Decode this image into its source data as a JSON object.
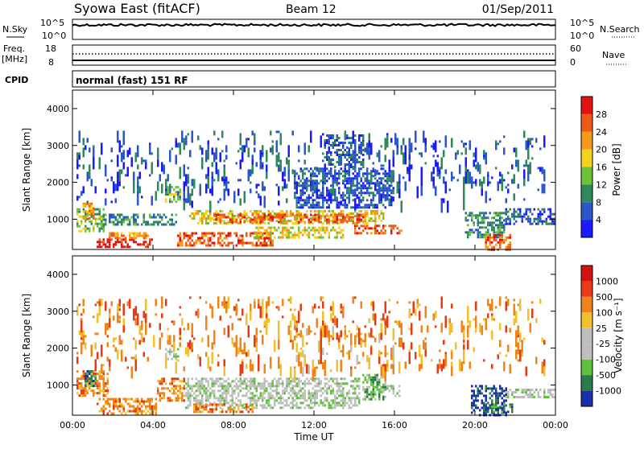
{
  "header": {
    "station": "Syowa East (fitACF)",
    "beam": "Beam 12",
    "date": "01/Sep/2011"
  },
  "top_panels": {
    "nsky": {
      "label": "N.Sky",
      "hi": "10^5",
      "lo": "10^0"
    },
    "nsearch": {
      "label": "N.Search",
      "hi": "10^5",
      "lo": "10^0"
    },
    "freq": {
      "label_line1": "Freq.",
      "label_line2": "[MHz]",
      "hi": "18",
      "lo": "8"
    },
    "nave": {
      "label": "Nave",
      "hi": "60",
      "lo": "0"
    },
    "cpid": {
      "label": "CPID",
      "text": "normal (fast) 151 RF"
    }
  },
  "chart_data": [
    {
      "type": "heatmap",
      "title": "",
      "xlabel": "Time UT",
      "ylabel": "Slant Range [km]",
      "xlim": [
        0,
        24
      ],
      "x_ticks": [
        "00:00",
        "04:00",
        "08:00",
        "12:00",
        "16:00",
        "20:00",
        "00:00"
      ],
      "ylim": [
        180,
        4500
      ],
      "y_ticks": [
        1000,
        2000,
        3000,
        4000
      ],
      "colorbar": {
        "label": "Power [dB]",
        "ticks": [
          "4",
          "8",
          "12",
          "16",
          "20",
          "24",
          "28"
        ],
        "colors": [
          "#1b1bff",
          "#2b57c8",
          "#2e8a5a",
          "#6dc23a",
          "#f2d21b",
          "#f59a1a",
          "#ef5a16",
          "#e31212"
        ]
      },
      "regions": [
        {
          "t0": 0.2,
          "t1": 1.6,
          "r0": 700,
          "r1": 1300,
          "level": 3
        },
        {
          "t0": 0.5,
          "t1": 1.1,
          "r0": 1000,
          "r1": 1450,
          "level": 5
        },
        {
          "t0": 1.2,
          "t1": 4.0,
          "r0": 250,
          "r1": 480,
          "level": 7
        },
        {
          "t0": 1.8,
          "t1": 3.8,
          "r0": 480,
          "r1": 650,
          "level": 5
        },
        {
          "t0": 1.5,
          "t1": 5.2,
          "r0": 850,
          "r1": 1150,
          "level": 2
        },
        {
          "t0": 4.6,
          "t1": 5.4,
          "r0": 1500,
          "r1": 1900,
          "level": 3
        },
        {
          "t0": 5.2,
          "t1": 10.0,
          "r0": 300,
          "r1": 650,
          "level": 6
        },
        {
          "t0": 5.8,
          "t1": 15.5,
          "r0": 900,
          "r1": 1250,
          "level": 4
        },
        {
          "t0": 7.0,
          "t1": 14.5,
          "r0": 950,
          "r1": 1150,
          "level": 6
        },
        {
          "t0": 9.0,
          "t1": 13.5,
          "r0": 500,
          "r1": 800,
          "level": 4
        },
        {
          "t0": 14.0,
          "t1": 16.4,
          "r0": 600,
          "r1": 850,
          "level": 6
        },
        {
          "t0": 11.0,
          "t1": 16.0,
          "r0": 1300,
          "r1": 2400,
          "level": 1
        },
        {
          "t0": 12.5,
          "t1": 14.5,
          "r0": 2400,
          "r1": 3300,
          "level": 1
        },
        {
          "t0": 19.5,
          "t1": 21.5,
          "r0": 500,
          "r1": 1200,
          "level": 2
        },
        {
          "t0": 20.5,
          "t1": 21.8,
          "r0": 200,
          "r1": 600,
          "level": 6
        },
        {
          "t0": 21.5,
          "t1": 24.0,
          "r0": 900,
          "r1": 1300,
          "level": 1
        },
        {
          "t0": 0.2,
          "t1": 23.5,
          "r0": 1500,
          "r1": 3400,
          "level": 1,
          "sparse": true
        }
      ]
    },
    {
      "type": "heatmap",
      "title": "",
      "xlabel": "Time UT",
      "ylabel": "Slant Range [km]",
      "xlim": [
        0,
        24
      ],
      "x_ticks": [
        "00:00",
        "04:00",
        "08:00",
        "12:00",
        "16:00",
        "20:00",
        "00:00"
      ],
      "ylim": [
        180,
        4500
      ],
      "y_ticks": [
        1000,
        2000,
        3000,
        4000
      ],
      "colorbar": {
        "label": "Velocity [m s⁻¹]",
        "ticks": [
          "1000",
          "500",
          "100",
          "25",
          "-25",
          "-100",
          "-500",
          "-1000"
        ],
        "colors": [
          "#1a2fa8",
          "#2a7a4a",
          "#5ec23a",
          "#bfbfbf",
          "#bfbfbf",
          "#f2c02a",
          "#f0841a",
          "#e83a14",
          "#d41010"
        ]
      },
      "regions": [
        {
          "t0": 0.2,
          "t1": 1.8,
          "r0": 700,
          "r1": 1400,
          "level": 6
        },
        {
          "t0": 0.6,
          "t1": 1.2,
          "r0": 1000,
          "r1": 1400,
          "level": 1
        },
        {
          "t0": 1.2,
          "t1": 4.2,
          "r0": 250,
          "r1": 650,
          "level": 6
        },
        {
          "t0": 4.2,
          "t1": 5.6,
          "r0": 600,
          "r1": 1200,
          "level": 6
        },
        {
          "t0": 4.6,
          "t1": 5.3,
          "r0": 1700,
          "r1": 2000,
          "level": 3
        },
        {
          "t0": 5.6,
          "t1": 14.3,
          "r0": 350,
          "r1": 1200,
          "level": 3
        },
        {
          "t0": 6.0,
          "t1": 9.0,
          "r0": 300,
          "r1": 500,
          "level": 6
        },
        {
          "t0": 14.4,
          "t1": 15.6,
          "r0": 600,
          "r1": 1300,
          "level": 2
        },
        {
          "t0": 15.6,
          "t1": 16.3,
          "r0": 700,
          "r1": 1000,
          "level": 3
        },
        {
          "t0": 11.0,
          "t1": 16.0,
          "r0": 1400,
          "r1": 2600,
          "level": 5,
          "sparse": true
        },
        {
          "t0": 19.8,
          "t1": 21.6,
          "r0": 200,
          "r1": 1000,
          "level": 0
        },
        {
          "t0": 20.5,
          "t1": 21.9,
          "r0": 250,
          "r1": 500,
          "level": 1
        },
        {
          "t0": 21.5,
          "t1": 24.0,
          "r0": 700,
          "r1": 900,
          "level": 3
        },
        {
          "t0": 0.2,
          "t1": 23.5,
          "r0": 1500,
          "r1": 3400,
          "level": 6,
          "sparse": true
        }
      ]
    }
  ]
}
